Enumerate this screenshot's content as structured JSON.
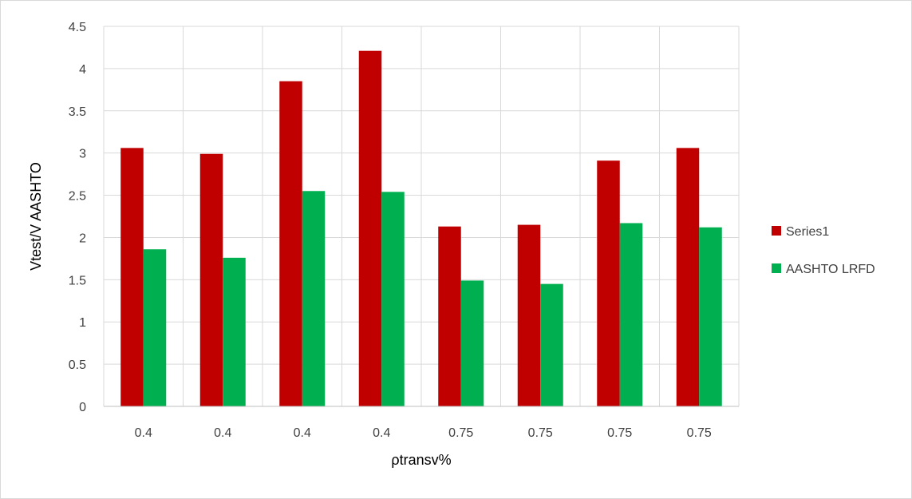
{
  "chart_data": {
    "type": "bar",
    "title": "",
    "xlabel": "ρtransv%",
    "ylabel": "Vtest/V AASHTO",
    "categories": [
      "0.4",
      "0.4",
      "0.4",
      "0.4",
      "0.75",
      "0.75",
      "0.75",
      "0.75"
    ],
    "series": [
      {
        "name": "Series1",
        "color": "#c00000",
        "values": [
          3.06,
          2.99,
          3.85,
          4.21,
          2.13,
          2.15,
          2.91,
          3.06
        ]
      },
      {
        "name": "AASHTO LRFD",
        "color": "#00b050",
        "values": [
          1.86,
          1.76,
          2.55,
          2.54,
          1.49,
          1.45,
          2.17,
          2.12
        ]
      }
    ],
    "ylim": [
      0,
      4.5
    ],
    "yticks": [
      "0",
      "0.5",
      "1",
      "1.5",
      "2",
      "2.5",
      "3",
      "3.5",
      "4",
      "4.5"
    ],
    "grid": true,
    "legend_position": "right",
    "gridline_color": "#d9d9d9",
    "axis_color": "#bfbfbf"
  }
}
